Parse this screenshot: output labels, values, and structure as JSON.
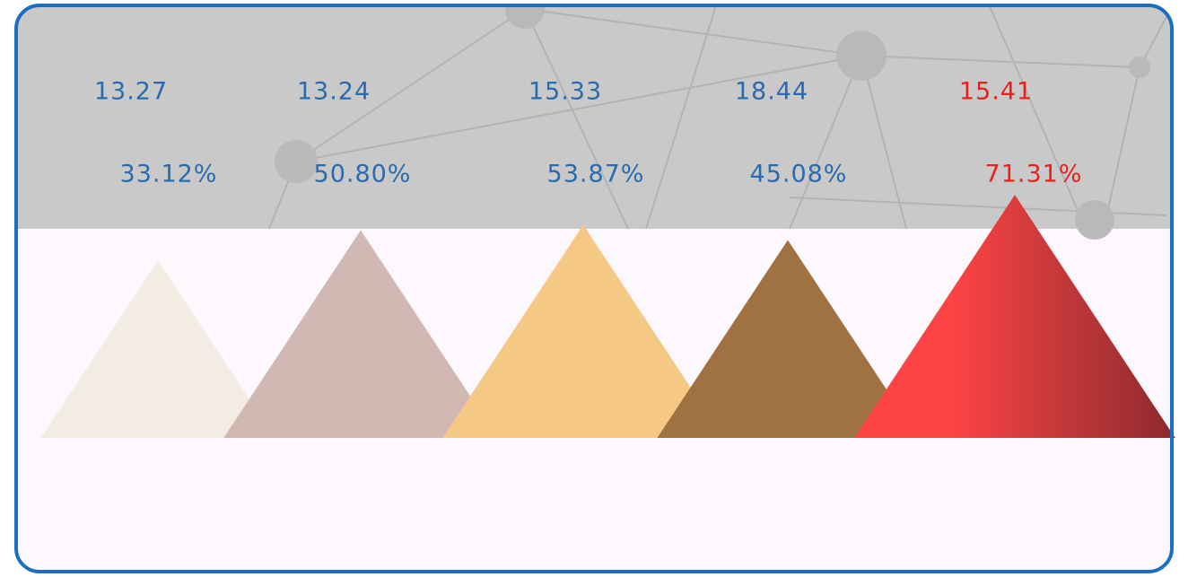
{
  "items": [
    {
      "value": "13.27",
      "percent": 33.12,
      "percent_label": "33.12%",
      "color": "#f3ece2",
      "text_color": "#2a6aad"
    },
    {
      "value": "13.24",
      "percent": 50.8,
      "percent_label": "50.80%",
      "color": "#d2b8b3",
      "text_color": "#2a6aad"
    },
    {
      "value": "15.33",
      "percent": 53.87,
      "percent_label": "53.87%",
      "color": "#f5c884",
      "text_color": "#2a6aad"
    },
    {
      "value": "18.44",
      "percent": 45.08,
      "percent_label": "45.08%",
      "color": "#a07242",
      "text_color": "#2a6aad"
    },
    {
      "value": "15.41",
      "percent": 71.31,
      "percent_label": "71.31%",
      "color": "#fc4444",
      "color_end": "#8b2a2f",
      "text_color": "#e8201f"
    }
  ]
}
